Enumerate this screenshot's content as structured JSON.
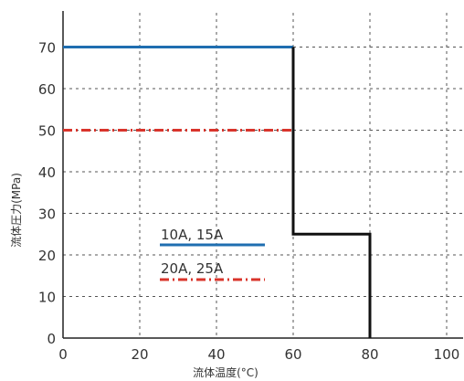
{
  "chart_data": {
    "type": "line",
    "xlabel": "流体温度(°C)",
    "ylabel": "流体圧力(MPa)",
    "xlim": [
      0,
      105
    ],
    "ylim": [
      0,
      78
    ],
    "x_ticks": [
      0,
      20,
      40,
      60,
      80,
      100
    ],
    "y_ticks": [
      0,
      10,
      20,
      30,
      40,
      50,
      60,
      70
    ],
    "grid": true,
    "legend_position": "inside-center-left",
    "series": [
      {
        "name": "10A, 15A",
        "color": "#1f6eb0",
        "style": "solid",
        "points": [
          [
            0,
            70
          ],
          [
            60,
            70
          ]
        ]
      },
      {
        "name": "20A, 25A",
        "color": "#d9342b",
        "style": "dash-dot",
        "points": [
          [
            0,
            50
          ],
          [
            60,
            50
          ]
        ]
      },
      {
        "name": "",
        "color": "#111111",
        "style": "solid",
        "points": [
          [
            60,
            70
          ],
          [
            60,
            25
          ],
          [
            80,
            25
          ],
          [
            80,
            0
          ]
        ]
      }
    ]
  }
}
